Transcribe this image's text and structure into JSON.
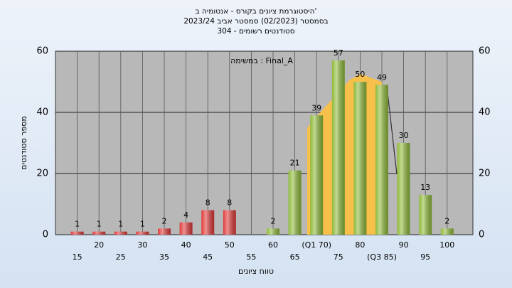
{
  "chart_data": {
    "type": "bar",
    "title": [
      "היסטוגרמת ציונים בקורס - אנטומיה ב'",
      "בסמסטר (02/2023) סמסטר אביב 2023/24",
      "סטודנטים רשומים - 304"
    ],
    "annotation": "במשימה : Final_A",
    "x_label": "טווח ציונים",
    "y_label": "מספר סטודנטים",
    "categories": [
      "15",
      "20",
      "25",
      "30",
      "35",
      "40",
      "45",
      "50",
      "55",
      "60",
      "65",
      "(Q1 70)",
      "75",
      "80",
      "(Q3 85)",
      "90",
      "95",
      "100"
    ],
    "values": [
      1,
      1,
      1,
      1,
      2,
      4,
      8,
      8,
      null,
      2,
      21,
      39,
      57,
      50,
      49,
      30,
      13,
      2
    ],
    "colors": [
      "#e03a3a",
      "#e03a3a",
      "#e03a3a",
      "#e03a3a",
      "#e03a3a",
      "#e03a3a",
      "#e03a3a",
      "#e03a3a",
      "#e03a3a",
      "#8fba3a",
      "#8fba3a",
      "#8fba3a",
      "#8fba3a",
      "#8fba3a",
      "#8fba3a",
      "#8fba3a",
      "#8fba3a",
      "#8fba3a"
    ],
    "ylim": [
      0,
      60
    ],
    "yticks": [
      0,
      20,
      40,
      60
    ],
    "grid": true
  }
}
